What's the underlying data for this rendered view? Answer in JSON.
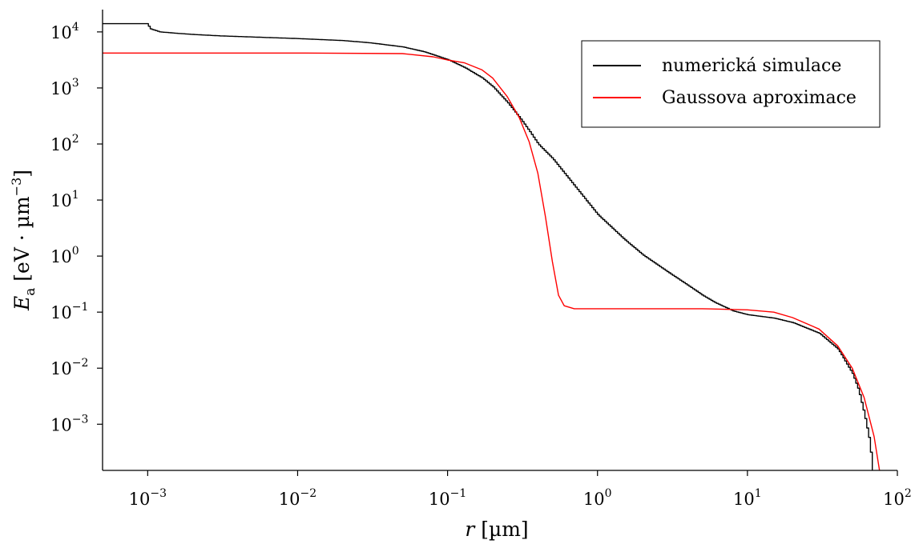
{
  "chart_data": {
    "type": "line",
    "x_scale": "log",
    "y_scale": "log",
    "xlim": [
      0.0005,
      100
    ],
    "ylim": [
      0.00015,
      25000
    ],
    "xlabel": "r [µm]",
    "ylabel": "E_a [eV · µm^-3]",
    "x_ticks": [
      {
        "base": "10",
        "exp": "−3",
        "value": 0.001
      },
      {
        "base": "10",
        "exp": "−2",
        "value": 0.01
      },
      {
        "base": "10",
        "exp": "−1",
        "value": 0.1
      },
      {
        "base": "10",
        "exp": "0",
        "value": 1
      },
      {
        "base": "10",
        "exp": "1",
        "value": 10
      },
      {
        "base": "10",
        "exp": "2",
        "value": 100
      }
    ],
    "y_ticks": [
      {
        "base": "10",
        "exp": "4",
        "value": 10000
      },
      {
        "base": "10",
        "exp": "3",
        "value": 1000
      },
      {
        "base": "10",
        "exp": "2",
        "value": 100
      },
      {
        "base": "10",
        "exp": "1",
        "value": 10
      },
      {
        "base": "10",
        "exp": "0",
        "value": 1
      },
      {
        "base": "10",
        "exp": "−1",
        "value": 0.1
      },
      {
        "base": "10",
        "exp": "−2",
        "value": 0.01
      },
      {
        "base": "10",
        "exp": "−3",
        "value": 0.001
      }
    ],
    "grid": false,
    "legend_position": "top-right",
    "series": [
      {
        "name": "numerická simulace",
        "color": "#000000",
        "step": true,
        "points": [
          [
            0.0005,
            14000
          ],
          [
            0.001,
            14000
          ],
          [
            0.00102,
            11500
          ],
          [
            0.0012,
            10000
          ],
          [
            0.0015,
            9500
          ],
          [
            0.002,
            9000
          ],
          [
            0.003,
            8500
          ],
          [
            0.005,
            8100
          ],
          [
            0.01,
            7600
          ],
          [
            0.02,
            7000
          ],
          [
            0.03,
            6400
          ],
          [
            0.05,
            5400
          ],
          [
            0.07,
            4400
          ],
          [
            0.1,
            3200
          ],
          [
            0.13,
            2300
          ],
          [
            0.17,
            1500
          ],
          [
            0.2,
            1050
          ],
          [
            0.25,
            550
          ],
          [
            0.3,
            300
          ],
          [
            0.35,
            170
          ],
          [
            0.4,
            100
          ],
          [
            0.5,
            55
          ],
          [
            0.7,
            18
          ],
          [
            1.0,
            5.5
          ],
          [
            1.5,
            2
          ],
          [
            2,
            1.05
          ],
          [
            3,
            0.5
          ],
          [
            4,
            0.3
          ],
          [
            5,
            0.2
          ],
          [
            6,
            0.15
          ],
          [
            8,
            0.105
          ],
          [
            10,
            0.09
          ],
          [
            15,
            0.078
          ],
          [
            20,
            0.065
          ],
          [
            30,
            0.042
          ],
          [
            40,
            0.022
          ],
          [
            50,
            0.008
          ],
          [
            55,
            0.004
          ],
          [
            60,
            0.0015
          ],
          [
            65,
            0.0005
          ],
          [
            68,
            0.00015
          ]
        ]
      },
      {
        "name": "Gaussova aproximace",
        "color": "#ff0000",
        "step": false,
        "points": [
          [
            0.0005,
            4200
          ],
          [
            0.01,
            4200
          ],
          [
            0.05,
            4100
          ],
          [
            0.08,
            3600
          ],
          [
            0.1,
            3150
          ],
          [
            0.13,
            2800
          ],
          [
            0.17,
            2100
          ],
          [
            0.2,
            1500
          ],
          [
            0.25,
            700
          ],
          [
            0.3,
            300
          ],
          [
            0.35,
            110
          ],
          [
            0.4,
            30
          ],
          [
            0.45,
            5
          ],
          [
            0.5,
            0.8
          ],
          [
            0.55,
            0.2
          ],
          [
            0.6,
            0.13
          ],
          [
            0.7,
            0.115
          ],
          [
            1,
            0.115
          ],
          [
            5,
            0.115
          ],
          [
            10,
            0.11
          ],
          [
            15,
            0.1
          ],
          [
            20,
            0.08
          ],
          [
            30,
            0.05
          ],
          [
            40,
            0.025
          ],
          [
            50,
            0.01
          ],
          [
            60,
            0.003
          ],
          [
            70,
            0.0006
          ],
          [
            76,
            0.00015
          ]
        ]
      }
    ]
  }
}
